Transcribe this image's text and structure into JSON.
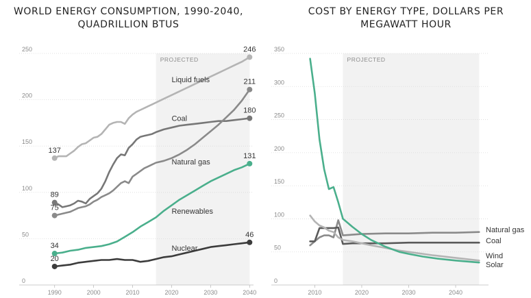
{
  "chart_data": [
    {
      "type": "line",
      "title": "WORLD ENERGY CONSUMPTION, 1990-2040, QUADRILLION BTUS",
      "title_lines": [
        "WORLD ENERGY CONSUMPTION, 1990-2040,",
        "QUADRILLION BTUS"
      ],
      "xlabel": "",
      "ylabel": "",
      "xlim": [
        1989,
        2041
      ],
      "ylim": [
        0,
        250
      ],
      "xticks": [
        1990,
        2000,
        2010,
        2020,
        2030,
        2040
      ],
      "xtick_labels": [
        "1990",
        "2000",
        "2010",
        "2020",
        "2030",
        "2040"
      ],
      "yticks": [
        0,
        50,
        100,
        150,
        200,
        250
      ],
      "ytick_labels": [
        "0",
        "50",
        "100",
        "150",
        "200",
        "250"
      ],
      "grid": true,
      "projected_range": [
        2016,
        2040
      ],
      "projected_label": "PROJECTED",
      "series": [
        {
          "name": "Liquid fuels",
          "color": "#b4b4b4",
          "start_label": "137",
          "end_label": "246",
          "start_value": 137,
          "end_value": 246,
          "label_x": 2020,
          "label_y": 222,
          "x": [
            1990,
            1991,
            1992,
            1993,
            1994,
            1995,
            1996,
            1997,
            1998,
            1999,
            2000,
            2001,
            2002,
            2003,
            2004,
            2005,
            2006,
            2007,
            2008,
            2009,
            2010,
            2011,
            2012,
            2013,
            2014,
            2015,
            2016,
            2018,
            2020,
            2022,
            2024,
            2026,
            2028,
            2030,
            2032,
            2034,
            2036,
            2038,
            2040
          ],
          "values": [
            137,
            139,
            139,
            139,
            142,
            145,
            149,
            152,
            153,
            156,
            159,
            160,
            163,
            168,
            173,
            175,
            176,
            176,
            174,
            180,
            184,
            187,
            189,
            191,
            193,
            195,
            197,
            201,
            205,
            209,
            213,
            217,
            221,
            225,
            229,
            233,
            237,
            241,
            246
          ]
        },
        {
          "name": "Coal",
          "color": "#777777",
          "start_label": "89",
          "end_label": "180",
          "start_value": 89,
          "end_value": 180,
          "label_x": 2020,
          "label_y": 180,
          "x": [
            1990,
            1991,
            1992,
            1993,
            1994,
            1995,
            1996,
            1997,
            1998,
            1999,
            2000,
            2001,
            2002,
            2003,
            2004,
            2005,
            2006,
            2007,
            2008,
            2009,
            2010,
            2011,
            2012,
            2013,
            2014,
            2015,
            2016,
            2018,
            2020,
            2022,
            2024,
            2026,
            2028,
            2030,
            2032,
            2034,
            2036,
            2038,
            2040
          ],
          "values": [
            89,
            87,
            84,
            85,
            86,
            88,
            91,
            90,
            88,
            93,
            96,
            99,
            104,
            112,
            122,
            130,
            137,
            141,
            140,
            148,
            152,
            157,
            160,
            161,
            162,
            163,
            165,
            168,
            170,
            172,
            173,
            174,
            175,
            176,
            177,
            177,
            178,
            179,
            180
          ]
        },
        {
          "name": "Natural gas",
          "color": "#8a8a8a",
          "start_label": "75",
          "end_label": "211",
          "start_value": 75,
          "end_value": 211,
          "label_x": 2020,
          "label_y": 133,
          "x": [
            1990,
            1991,
            1992,
            1993,
            1994,
            1995,
            1996,
            1997,
            1998,
            1999,
            2000,
            2001,
            2002,
            2003,
            2004,
            2005,
            2006,
            2007,
            2008,
            2009,
            2010,
            2011,
            2012,
            2013,
            2014,
            2015,
            2016,
            2018,
            2020,
            2022,
            2024,
            2026,
            2028,
            2030,
            2032,
            2034,
            2036,
            2038,
            2040
          ],
          "values": [
            75,
            76,
            77,
            78,
            79,
            81,
            83,
            84,
            85,
            87,
            90,
            92,
            95,
            97,
            99,
            102,
            106,
            110,
            112,
            110,
            117,
            120,
            123,
            126,
            128,
            130,
            132,
            134,
            137,
            141,
            146,
            152,
            159,
            166,
            173,
            181,
            189,
            199,
            211
          ]
        },
        {
          "name": "Renewables",
          "color": "#4aaf8c",
          "start_label": "34",
          "end_label": "131",
          "start_value": 34,
          "end_value": 131,
          "label_x": 2020,
          "label_y": 80,
          "x": [
            1990,
            1992,
            1994,
            1996,
            1998,
            2000,
            2002,
            2004,
            2006,
            2008,
            2010,
            2012,
            2014,
            2016,
            2018,
            2020,
            2022,
            2024,
            2026,
            2028,
            2030,
            2032,
            2034,
            2036,
            2038,
            2040
          ],
          "values": [
            34,
            35,
            37,
            38,
            40,
            41,
            42,
            44,
            47,
            52,
            57,
            63,
            68,
            73,
            80,
            86,
            92,
            97,
            102,
            107,
            112,
            116,
            120,
            124,
            127,
            131
          ]
        },
        {
          "name": "Nuclear",
          "color": "#3c3c3c",
          "start_label": "20",
          "end_label": "46",
          "start_value": 20,
          "end_value": 46,
          "label_x": 2020,
          "label_y": 40,
          "x": [
            1990,
            1992,
            1994,
            1996,
            1998,
            2000,
            2002,
            2004,
            2006,
            2008,
            2010,
            2011,
            2012,
            2014,
            2016,
            2018,
            2020,
            2022,
            2024,
            2026,
            2028,
            2030,
            2032,
            2034,
            2036,
            2038,
            2040
          ],
          "values": [
            20,
            21,
            22,
            24,
            25,
            26,
            27,
            27,
            28,
            27,
            27,
            26,
            25,
            26,
            28,
            30,
            31,
            33,
            35,
            37,
            39,
            41,
            42,
            43,
            44,
            45,
            46
          ]
        }
      ]
    },
    {
      "type": "line",
      "title": "COST BY ENERGY TYPE, DOLLARS PER MEGAWATT HOUR",
      "title_lines": [
        "COST BY ENERGY TYPE, DOLLARS PER",
        "MEGAWATT HOUR"
      ],
      "xlabel": "",
      "ylabel": "",
      "xlim": [
        2006,
        2047
      ],
      "ylim": [
        0,
        350
      ],
      "xticks": [
        2010,
        2020,
        2030,
        2040
      ],
      "xtick_labels": [
        "2010",
        "2020",
        "2030",
        "2040"
      ],
      "yticks": [
        0,
        50,
        100,
        150,
        200,
        250,
        300,
        350
      ],
      "ytick_labels": [
        "0",
        "50",
        "100",
        "150",
        "200",
        "250",
        "300",
        "350"
      ],
      "grid": true,
      "projected_range": [
        2016,
        2045
      ],
      "projected_label": "PROJECTED",
      "series": [
        {
          "name": "Natural gas",
          "color": "#8a8a8a",
          "end_label": "Natural gas",
          "x": [
            2009,
            2010,
            2011,
            2012,
            2013,
            2014,
            2015,
            2016,
            2018,
            2020,
            2025,
            2030,
            2035,
            2040,
            2045
          ],
          "values": [
            60,
            66,
            72,
            75,
            75,
            72,
            98,
            75,
            76,
            77,
            78,
            78,
            79,
            79,
            80
          ]
        },
        {
          "name": "Coal",
          "color": "#5a5a5a",
          "end_label": "Coal",
          "x": [
            2009,
            2010,
            2011,
            2012,
            2013,
            2014,
            2015,
            2016,
            2018,
            2020,
            2025,
            2030,
            2035,
            2040,
            2045
          ],
          "values": [
            66,
            66,
            86,
            86,
            86,
            86,
            87,
            62,
            63,
            63,
            63,
            64,
            64,
            64,
            64
          ]
        },
        {
          "name": "Wind",
          "color": "#b4b4b4",
          "end_label": "Wind",
          "x": [
            2009,
            2010,
            2011,
            2012,
            2013,
            2014,
            2015,
            2016,
            2018,
            2020,
            2022,
            2025,
            2028,
            2030,
            2035,
            2040,
            2045
          ],
          "values": [
            105,
            96,
            90,
            87,
            82,
            80,
            72,
            68,
            66,
            63,
            60,
            56,
            52,
            50,
            45,
            41,
            37
          ]
        },
        {
          "name": "Solar",
          "color": "#4aaf8c",
          "end_label": "Solar",
          "x": [
            2009,
            2010,
            2011,
            2012,
            2013,
            2014,
            2015,
            2016,
            2018,
            2020,
            2022,
            2025,
            2028,
            2030,
            2033,
            2036,
            2040,
            2045
          ],
          "values": [
            342,
            290,
            220,
            175,
            145,
            148,
            125,
            100,
            88,
            77,
            68,
            58,
            50,
            47,
            43,
            40,
            37,
            34
          ]
        }
      ]
    }
  ]
}
